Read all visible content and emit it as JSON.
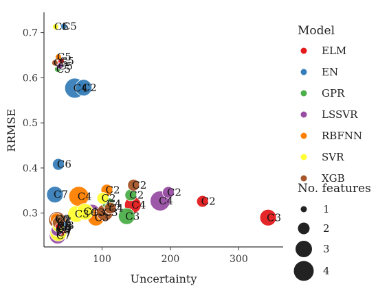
{
  "chart_data": {
    "type": "scatter",
    "title": "",
    "xlabel": "Uncertainty",
    "ylabel": "RRMSE",
    "xlim": [
      15,
      365
    ],
    "ylim": [
      0.225,
      0.745
    ],
    "xticks": [
      100,
      200,
      300
    ],
    "yticks": [
      0.3,
      0.4,
      0.5,
      0.6,
      0.7
    ],
    "grid": false,
    "legend_placement": "right",
    "legend_title": "Model",
    "size_legend_title": "No. features",
    "size_legend": [
      1,
      2,
      3,
      4
    ],
    "series": [
      {
        "name": "ELM",
        "color": "#e41a1c",
        "points": [
          {
            "x": 247,
            "y": 0.326,
            "size": 2,
            "label": "C2"
          },
          {
            "x": 343,
            "y": 0.29,
            "size": 3,
            "label": "C3"
          },
          {
            "x": 145,
            "y": 0.318,
            "size": 3,
            "label": "C4"
          },
          {
            "x": 40,
            "y": 0.637,
            "size": 1,
            "label": "C5"
          },
          {
            "x": 36,
            "y": 0.27,
            "size": 1,
            "label": "C6"
          },
          {
            "x": 38,
            "y": 0.262,
            "size": 2,
            "label": "C7"
          }
        ]
      },
      {
        "name": "EN",
        "color": "#377eb8",
        "points": [
          {
            "x": 73,
            "y": 0.578,
            "size": 3,
            "label": "C2"
          },
          {
            "x": 40,
            "y": 0.272,
            "size": 2,
            "label": "C3"
          },
          {
            "x": 60,
            "y": 0.577,
            "size": 4,
            "label": "C4"
          },
          {
            "x": 44,
            "y": 0.714,
            "size": 1,
            "label": "C5"
          },
          {
            "x": 36,
            "y": 0.408,
            "size": 2,
            "label": "C6"
          },
          {
            "x": 31,
            "y": 0.341,
            "size": 3,
            "label": "C7"
          }
        ]
      },
      {
        "name": "GPR",
        "color": "#4daf4a",
        "points": [
          {
            "x": 142,
            "y": 0.34,
            "size": 2,
            "label": "C2"
          },
          {
            "x": 136,
            "y": 0.293,
            "size": 3,
            "label": "C3"
          },
          {
            "x": 109,
            "y": 0.321,
            "size": 2,
            "label": "C4"
          },
          {
            "x": 35,
            "y": 0.619,
            "size": 1,
            "label": "C5"
          },
          {
            "x": 35,
            "y": 0.266,
            "size": 2,
            "label": "C6"
          },
          {
            "x": 36,
            "y": 0.266,
            "size": 2,
            "label": "C7"
          }
        ]
      },
      {
        "name": "LSSVR",
        "color": "#984ea3",
        "points": [
          {
            "x": 197,
            "y": 0.346,
            "size": 2,
            "label": "C2"
          },
          {
            "x": 85,
            "y": 0.301,
            "size": 3,
            "label": "C3"
          },
          {
            "x": 185,
            "y": 0.327,
            "size": 4,
            "label": "C4"
          },
          {
            "x": 38,
            "y": 0.626,
            "size": 1,
            "label": "C5"
          },
          {
            "x": 34,
            "y": 0.262,
            "size": 2,
            "label": "C6"
          },
          {
            "x": 35,
            "y": 0.25,
            "size": 3,
            "label": "C7"
          }
        ]
      },
      {
        "name": "RBFNN",
        "color": "#ff7f00",
        "points": [
          {
            "x": 107,
            "y": 0.351,
            "size": 2,
            "label": "C2"
          },
          {
            "x": 91,
            "y": 0.29,
            "size": 3,
            "label": "C3"
          },
          {
            "x": 66,
            "y": 0.337,
            "size": 4,
            "label": "C4"
          },
          {
            "x": 36,
            "y": 0.646,
            "size": 1,
            "label": "C5"
          },
          {
            "x": 33,
            "y": 0.287,
            "size": 2,
            "label": "C6"
          },
          {
            "x": 36,
            "y": 0.281,
            "size": 3,
            "label": "C7"
          }
        ]
      },
      {
        "name": "SVR",
        "color": "#ffff33",
        "points": [
          {
            "x": 101,
            "y": 0.333,
            "size": 2,
            "label": "C2"
          },
          {
            "x": 62,
            "y": 0.298,
            "size": 3,
            "label": "C3"
          },
          {
            "x": 75,
            "y": 0.303,
            "size": 3,
            "label": "C4"
          },
          {
            "x": 32,
            "y": 0.713,
            "size": 1,
            "label": "C5"
          },
          {
            "x": 36,
            "y": 0.271,
            "size": 2,
            "label": "C6"
          },
          {
            "x": 36,
            "y": 0.256,
            "size": 3,
            "label": "C7"
          }
        ]
      },
      {
        "name": "XGB",
        "color": "#a65628",
        "points": [
          {
            "x": 146,
            "y": 0.362,
            "size": 2,
            "label": "C2"
          },
          {
            "x": 104,
            "y": 0.301,
            "size": 3,
            "label": "C3"
          },
          {
            "x": 112,
            "y": 0.311,
            "size": 2,
            "label": "C4"
          },
          {
            "x": 31,
            "y": 0.633,
            "size": 1,
            "label": "C5"
          },
          {
            "x": 36,
            "y": 0.279,
            "size": 2,
            "label": "C6"
          },
          {
            "x": 34,
            "y": 0.285,
            "size": 3,
            "label": "C7"
          }
        ]
      }
    ]
  }
}
